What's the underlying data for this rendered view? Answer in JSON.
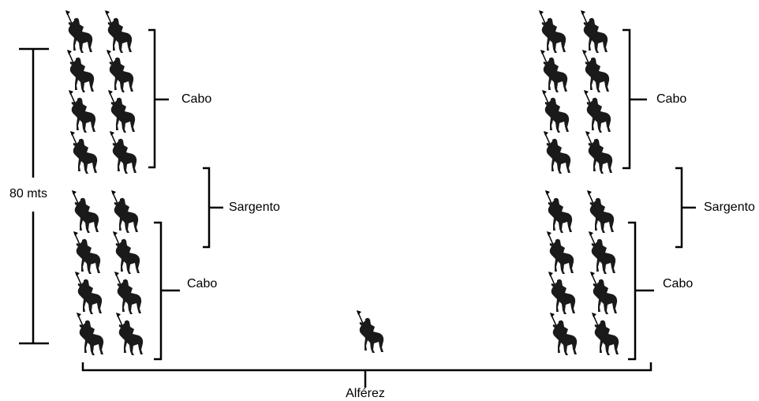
{
  "measure": {
    "label": "80 mts"
  },
  "left": {
    "upper": {
      "label": "Cabo"
    },
    "middle": {
      "label": "Sargento"
    },
    "lower": {
      "label": "Cabo"
    }
  },
  "right": {
    "upper": {
      "label": "Cabo"
    },
    "middle": {
      "label": "Sargento"
    },
    "lower": {
      "label": "Cabo"
    }
  },
  "commander": {
    "label": "Alférez"
  }
}
